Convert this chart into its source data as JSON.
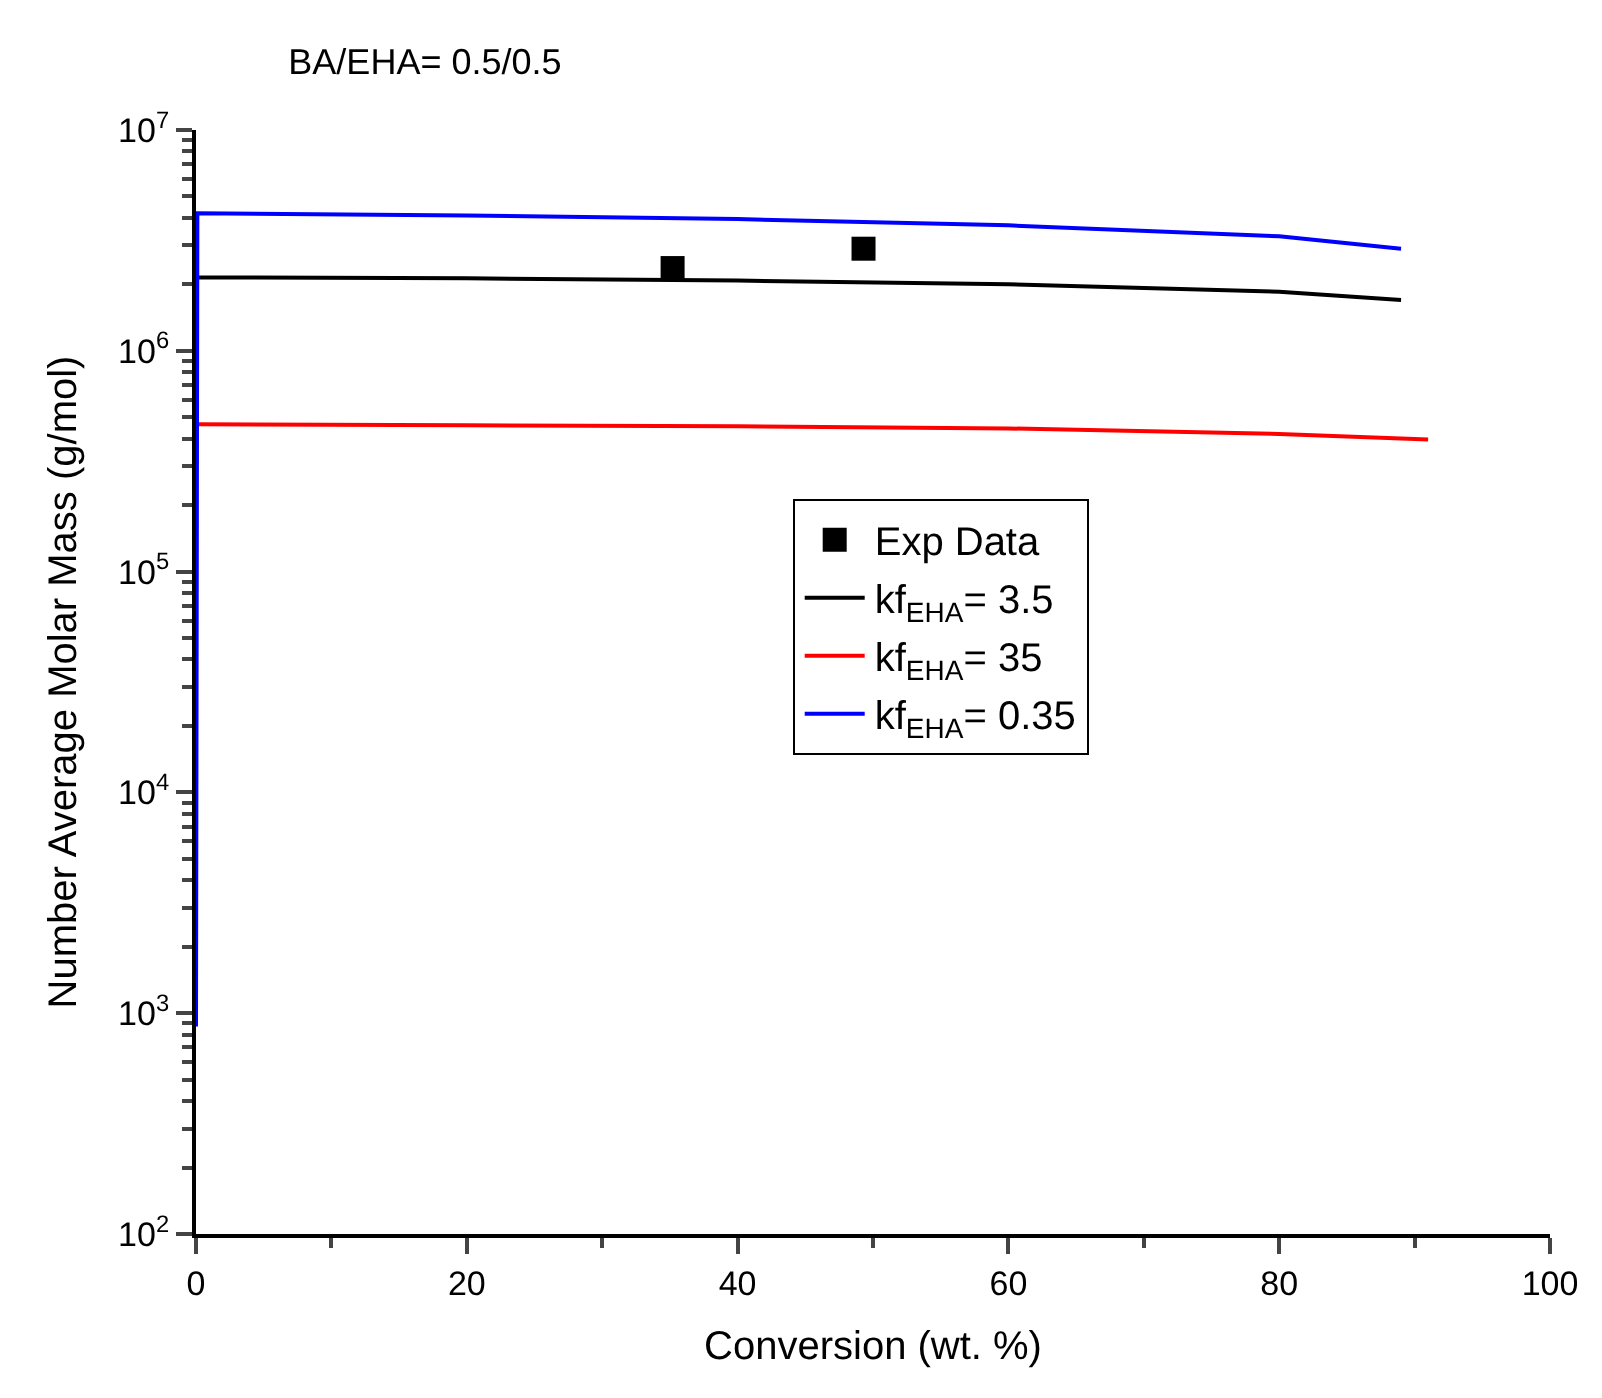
{
  "chart_data": {
    "type": "line",
    "title": "BA/EHA= 0.5/0.5",
    "xlabel": "Conversion (wt. %)",
    "ylabel": "Number Average Molar Mass (g/mol)",
    "series": [
      {
        "name": "Exp Data",
        "type": "scatter",
        "marker": "square",
        "color": "#000000",
        "x": [
          35.2,
          49.3
        ],
        "values": [
          2370000,
          2900000
        ]
      },
      {
        "name": "kf$_{EHA}$= 3.5",
        "color": "#000000",
        "x": [
          0.1,
          20,
          40,
          60,
          80,
          89
        ],
        "values": [
          2150000,
          2130000,
          2080000,
          2000000,
          1850000,
          1700000
        ]
      },
      {
        "name": "kf$_{EHA}$= 35",
        "color": "#ff0000",
        "x": [
          0.1,
          20,
          40,
          60,
          80,
          91
        ],
        "values": [
          465000,
          460000,
          455000,
          445000,
          420000,
          397000
        ]
      },
      {
        "name": "kf$_{EHA}$= 0.35",
        "color": "#0000ff",
        "x": [
          0,
          0.1,
          20,
          40,
          60,
          80,
          89
        ],
        "values": [
          870,
          4200000,
          4100000,
          3950000,
          3700000,
          3300000,
          2900000
        ]
      }
    ],
    "log": "y",
    "xlim": [
      0,
      100
    ],
    "xticks": [
      0,
      20,
      40,
      60,
      80,
      100
    ],
    "ylim": [
      100,
      10000000
    ],
    "yticks": [
      {
        "value": 100,
        "label": "10$^{2}$"
      },
      {
        "value": 1000,
        "label": "10$^{3}$"
      },
      {
        "value": 10000,
        "label": "10$^{4}$"
      },
      {
        "value": 100000,
        "label": "10$^{5}$"
      },
      {
        "value": 1000000,
        "label": "10$^{6}$"
      },
      {
        "value": 10000000,
        "label": "10$^{7}$"
      }
    ],
    "legend": "center",
    "line_style": "solid"
  }
}
